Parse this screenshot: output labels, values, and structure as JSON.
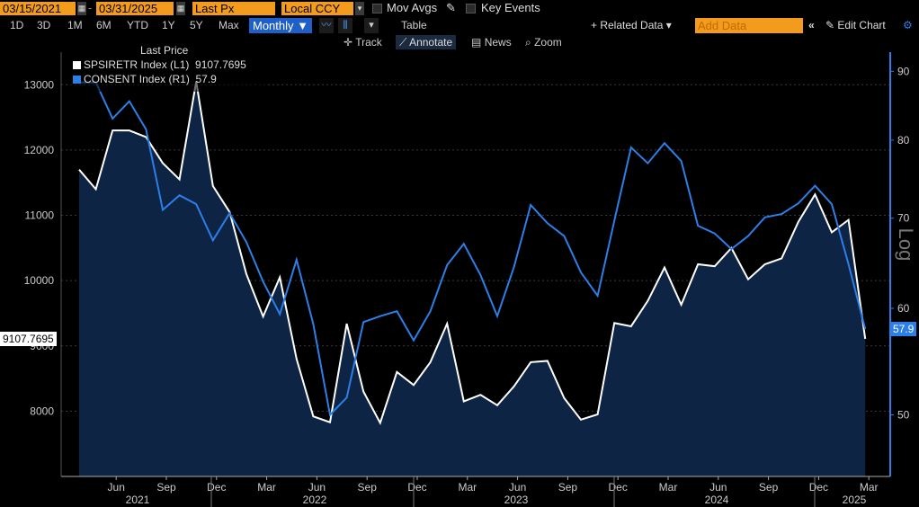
{
  "toolbar": {
    "start_date": "03/15/2021",
    "end_date": "03/31/2025",
    "price_field": "Last Px",
    "currency": "Local CCY",
    "mov_avgs": "Mov Avgs",
    "key_events": "Key Events",
    "periods": [
      "1D",
      "3D",
      "1M",
      "6M",
      "YTD",
      "1Y",
      "5Y",
      "Max"
    ],
    "frequency": "Monthly",
    "table_label": "Table",
    "related_data": "Related Data",
    "add_data_placeholder": "Add Data",
    "edit_chart": "Edit Chart"
  },
  "tools": {
    "track": "Track",
    "annotate": "Annotate",
    "news": "News",
    "zoom": "Zoom"
  },
  "legend": {
    "header": "Last Price",
    "series": [
      {
        "label": "SPSIRETR Index (L1)",
        "value": "9107.7695"
      },
      {
        "label": "CONSENT Index (R1)",
        "value": "57.9"
      }
    ]
  },
  "right_axis_title": "Log",
  "chart_data": {
    "type": "line",
    "title": "",
    "x_tick_labels": [
      "Jun",
      "Sep",
      "Dec",
      "Mar",
      "Jun",
      "Sep",
      "Dec",
      "Mar",
      "Jun",
      "Sep",
      "Dec",
      "Mar",
      "Jun",
      "Sep",
      "Dec",
      "Mar"
    ],
    "x_year_labels": [
      "2021",
      "2022",
      "2023",
      "2024",
      "2025"
    ],
    "left_axis": {
      "ticks": [
        "8000",
        "9000",
        "10000",
        "11000",
        "12000",
        "13000"
      ],
      "ylim": [
        7000,
        13500
      ]
    },
    "right_axis": {
      "ticks": [
        "50",
        "60",
        "70",
        "80",
        "90"
      ],
      "ylim": [
        45,
        93
      ],
      "scale": "log"
    },
    "series": [
      {
        "name": "SPSIRETR Index (L1)",
        "axis": "left",
        "color": "#ffffff",
        "area_fill": "#0d2445",
        "last_value_label": "9107.7695",
        "values": [
          11700,
          11400,
          12300,
          12300,
          12200,
          11800,
          11550,
          13050,
          11450,
          11050,
          10100,
          9450,
          10050,
          8800,
          7920,
          7830,
          9340,
          8300,
          7820,
          8600,
          8400,
          8750,
          9340,
          8150,
          8250,
          8090,
          8380,
          8750,
          8770,
          8200,
          7870,
          7950,
          9350,
          9300,
          9690,
          10200,
          9630,
          10250,
          10220,
          10500,
          10020,
          10250,
          10340,
          10900,
          11320,
          10740,
          10930,
          9107.7695
        ]
      },
      {
        "name": "CONSENT Index (R1)",
        "axis": "right",
        "color": "#2d7fe8",
        "last_value_label": "57.9",
        "values": [
          88.3,
          88.3,
          83.0,
          85.5,
          81.5,
          71.0,
          72.8,
          71.7,
          67.4,
          70.6,
          67.2,
          62.8,
          59.4,
          65.2,
          58.4,
          50.0,
          51.5,
          58.6,
          59.2,
          59.7,
          56.8,
          59.7,
          64.6,
          67.0,
          63.5,
          59.2,
          64.4,
          71.6,
          69.4,
          67.9,
          63.8,
          61.3,
          69.7,
          79.0,
          76.9,
          79.6,
          77.2,
          69.1,
          68.2,
          66.4,
          67.9,
          70.1,
          70.5,
          71.8,
          74.0,
          71.7,
          64.7,
          57.9
        ]
      }
    ]
  }
}
